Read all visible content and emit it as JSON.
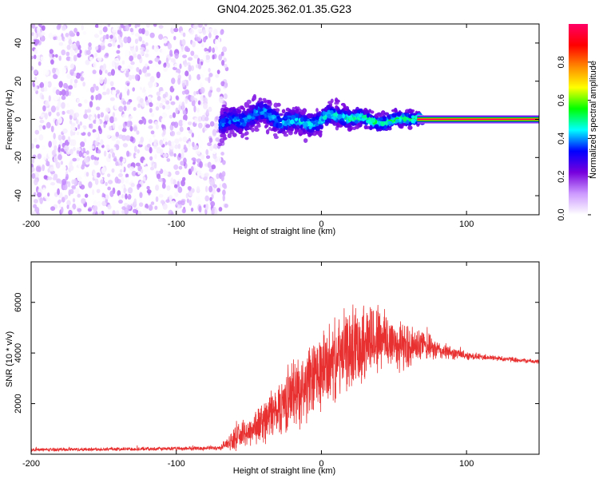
{
  "title": "GN04.2025.362.01.35.G23",
  "chart_data": [
    {
      "type": "heatmap",
      "title": "GN04.2025.362.01.35.G23",
      "xlabel": "Height of straight line (km)",
      "ylabel": "Frequency (Hz)",
      "xlim": [
        -200,
        150
      ],
      "ylim": [
        -50,
        50
      ],
      "x_ticks": [
        -200,
        -100,
        0,
        100
      ],
      "y_ticks": [
        -40,
        -20,
        0,
        20,
        40
      ],
      "colorbar": {
        "label": "Normalized spectral amplitude",
        "range": [
          0,
          1
        ],
        "ticks": [
          0.0,
          0.2,
          0.4,
          0.6,
          0.8
        ],
        "colormap": [
          "#ffffff",
          "#cc99ff",
          "#7700dd",
          "#0000ff",
          "#00ffff",
          "#00ff00",
          "#ffff00",
          "#ff8800",
          "#ff0000",
          "#ff0066"
        ]
      },
      "regions": [
        {
          "name": "noise",
          "x_range": [
            -200,
            -70
          ],
          "y_range": [
            -50,
            50
          ],
          "amplitude_range": [
            0.0,
            0.15
          ]
        },
        {
          "name": "signal-onset",
          "x_range": [
            -70,
            70
          ],
          "y_center": 0,
          "half_width_hz": [
            8,
            3
          ],
          "amplitude_range": [
            0.1,
            0.6
          ]
        },
        {
          "name": "signal-stable",
          "x_range": [
            70,
            150
          ],
          "y_center": 0,
          "half_width_hz": 1.5,
          "amplitude_range": [
            0.8,
            1.0
          ]
        }
      ]
    },
    {
      "type": "line",
      "xlabel": "Height of straight line (km)",
      "ylabel": "SNR (10 * v/v)",
      "xlim": [
        -200,
        150
      ],
      "ylim": [
        0,
        7600
      ],
      "x_ticks": [
        -200,
        -100,
        0,
        100
      ],
      "y_ticks": [
        2000,
        4000,
        6000
      ],
      "color": "#e83030",
      "x": [
        -200,
        -150,
        -100,
        -70,
        -60,
        -50,
        -40,
        -30,
        -20,
        -10,
        0,
        10,
        20,
        30,
        40,
        50,
        60,
        70,
        80,
        90,
        100,
        110,
        120,
        130,
        140,
        150
      ],
      "y": [
        180,
        200,
        220,
        250,
        600,
        900,
        1300,
        1800,
        2400,
        2700,
        3300,
        3700,
        4200,
        4500,
        4600,
        4400,
        4200,
        4300,
        4100,
        4000,
        3900,
        3850,
        3800,
        3750,
        3700,
        3650
      ],
      "y_spread": [
        80,
        80,
        90,
        100,
        500,
        700,
        1000,
        1300,
        1600,
        1700,
        1900,
        1800,
        1900,
        1900,
        1700,
        1300,
        1000,
        700,
        450,
        300,
        200,
        150,
        130,
        120,
        110,
        100
      ]
    }
  ]
}
